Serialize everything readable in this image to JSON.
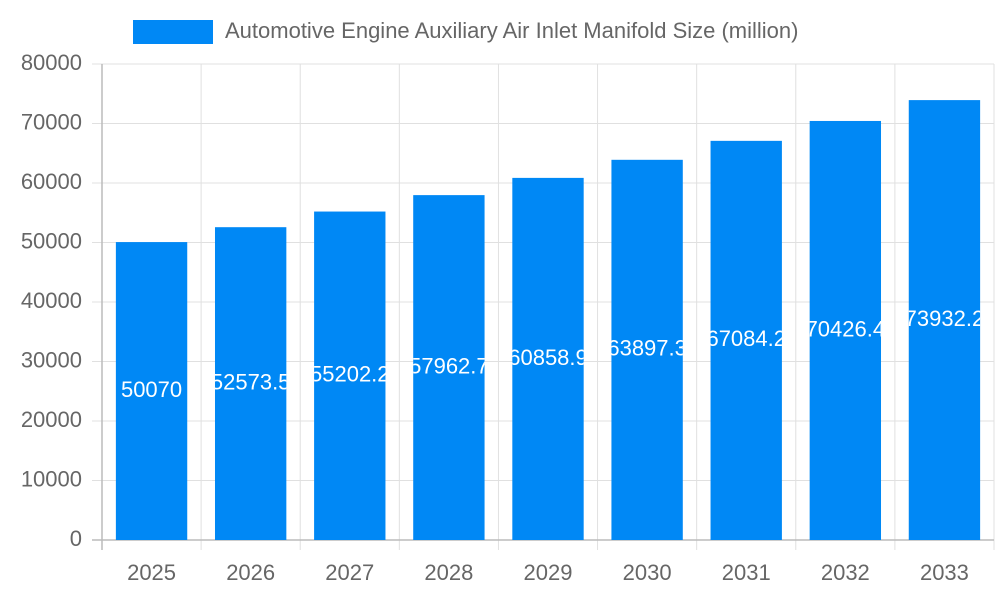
{
  "chart_data": {
    "type": "bar",
    "legend": "Automotive Engine Auxiliary Air Inlet Manifold Size (million)",
    "categories": [
      "2025",
      "2026",
      "2027",
      "2028",
      "2029",
      "2030",
      "2031",
      "2032",
      "2033"
    ],
    "values": [
      50070,
      52573.5,
      55202.2,
      57962.7,
      60858.9,
      63897.3,
      67084.2,
      70426.4,
      73932.2
    ],
    "color": "#0088f5",
    "ylim": [
      0,
      80000
    ],
    "yticks": [
      0,
      10000,
      20000,
      30000,
      40000,
      50000,
      60000,
      70000,
      80000
    ],
    "grid": true
  }
}
